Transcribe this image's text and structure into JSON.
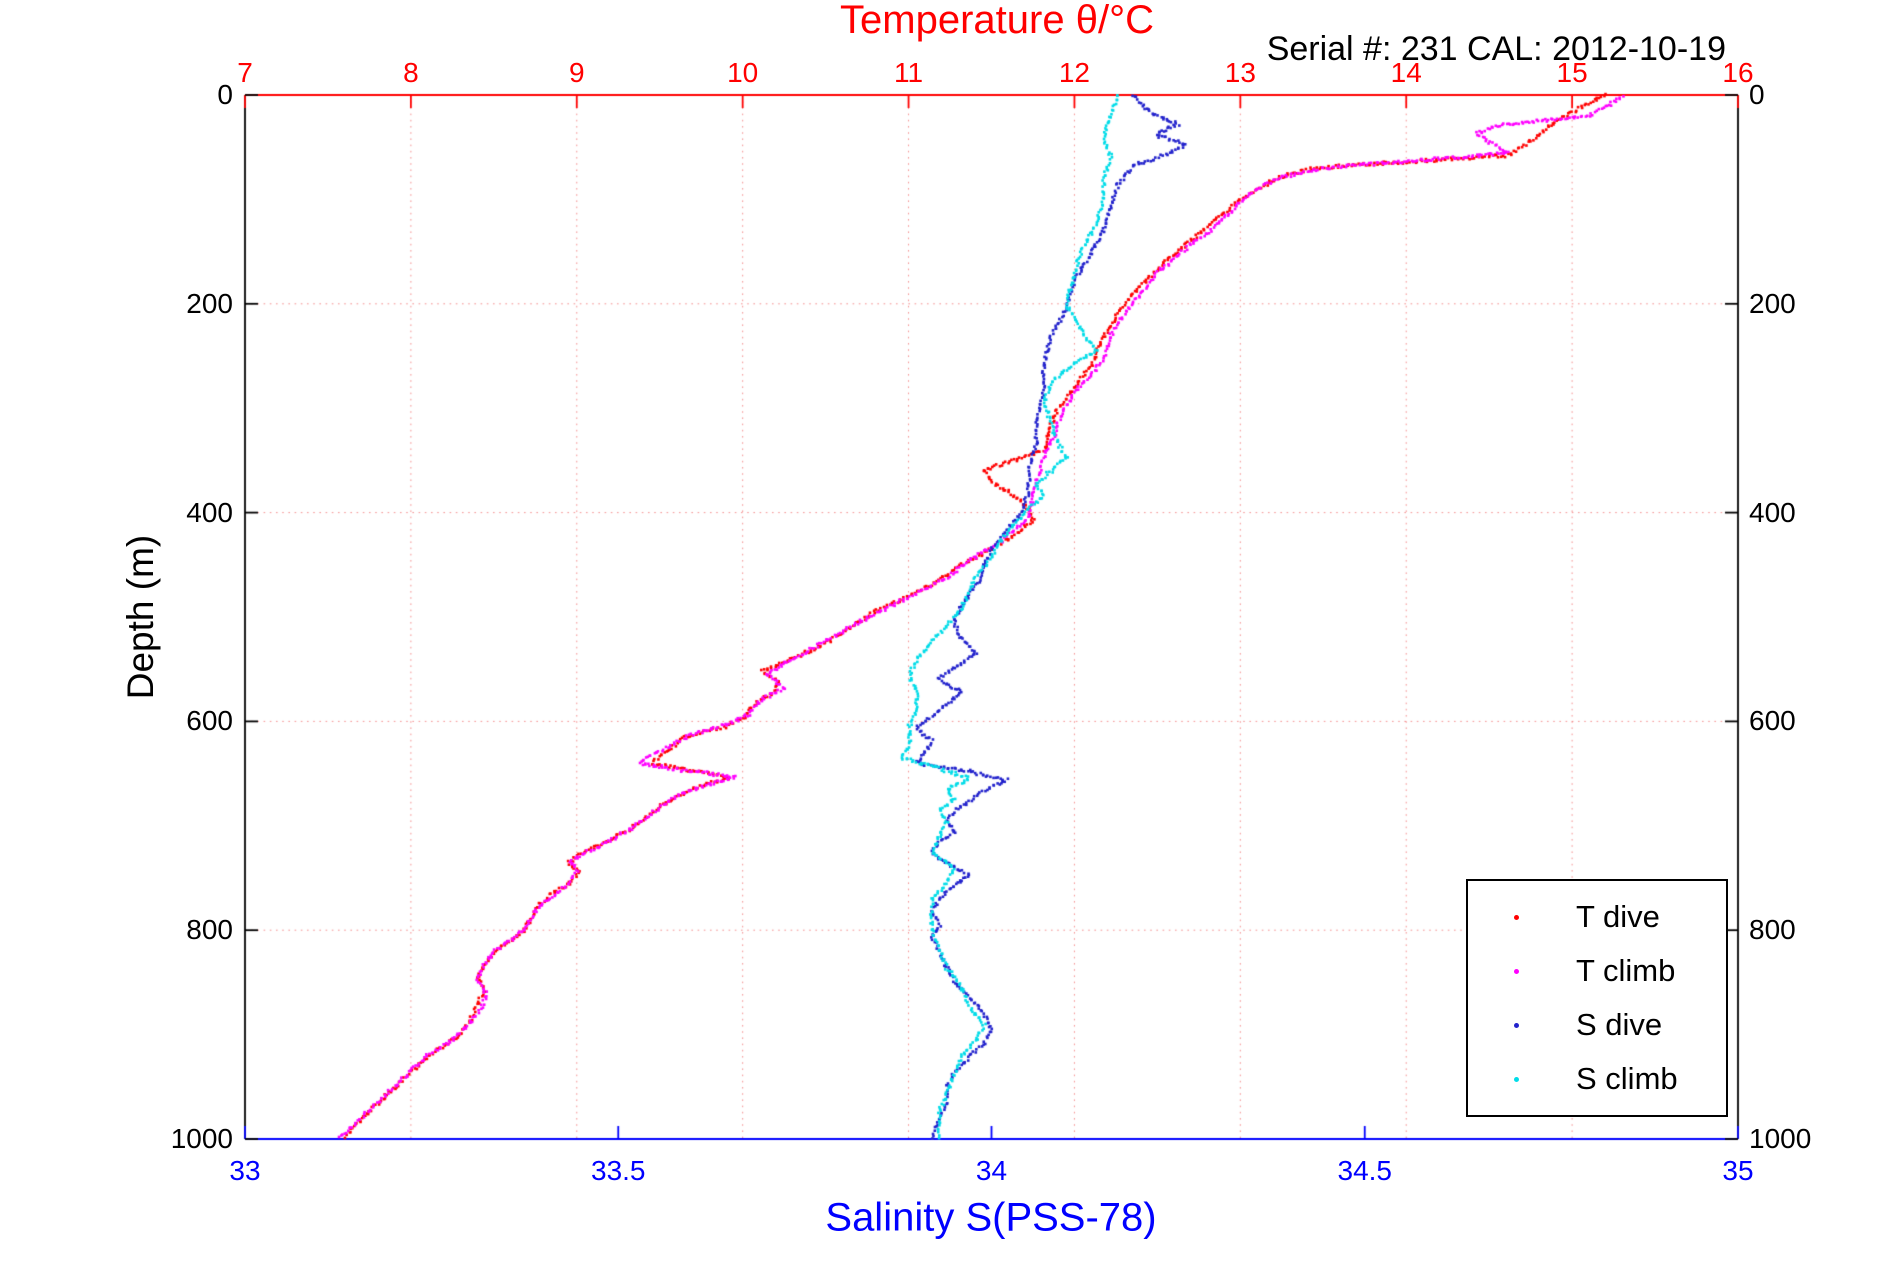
{
  "chart_data": {
    "type": "scatter",
    "title": "Temperature θ/°C",
    "annotation": "Serial #: 231  CAL: 2012-10-19",
    "xlabel": "Salinity S(PSS-78)",
    "ylabel": "Depth (m)",
    "grid": true,
    "grid_color": "#f06a6a",
    "legend_position": "inside lower right",
    "depth_axis": {
      "min": 0,
      "max": 1000,
      "ticks": [
        0,
        200,
        400,
        600,
        800,
        1000
      ],
      "color": "#000000"
    },
    "temp_axis": {
      "min": 7,
      "max": 16,
      "ticks": [
        7,
        8,
        9,
        10,
        11,
        12,
        13,
        14,
        15,
        16
      ],
      "color": "#ff0000"
    },
    "sal_axis": {
      "min": 33,
      "max": 35,
      "ticks": [
        33,
        33.5,
        34,
        34.5,
        35
      ],
      "color": "#0000ff"
    },
    "series": [
      {
        "name": "T dive",
        "axis": "temp",
        "color": "#ff0000",
        "points": [
          [
            0,
            15.2
          ],
          [
            12,
            15.05
          ],
          [
            25,
            14.9
          ],
          [
            38,
            14.8
          ],
          [
            50,
            14.7
          ],
          [
            58,
            14.6
          ],
          [
            62,
            14.2
          ],
          [
            66,
            13.8
          ],
          [
            70,
            13.45
          ],
          [
            78,
            13.25
          ],
          [
            90,
            13.1
          ],
          [
            100,
            13.0
          ],
          [
            120,
            12.85
          ],
          [
            140,
            12.7
          ],
          [
            160,
            12.55
          ],
          [
            180,
            12.42
          ],
          [
            200,
            12.3
          ],
          [
            220,
            12.22
          ],
          [
            240,
            12.15
          ],
          [
            260,
            12.1
          ],
          [
            280,
            12.0
          ],
          [
            300,
            11.9
          ],
          [
            320,
            11.85
          ],
          [
            340,
            11.82
          ],
          [
            352,
            11.6
          ],
          [
            360,
            11.45
          ],
          [
            370,
            11.5
          ],
          [
            382,
            11.62
          ],
          [
            395,
            11.72
          ],
          [
            408,
            11.75
          ],
          [
            420,
            11.65
          ],
          [
            435,
            11.5
          ],
          [
            450,
            11.32
          ],
          [
            465,
            11.18
          ],
          [
            480,
            11.0
          ],
          [
            495,
            10.8
          ],
          [
            510,
            10.65
          ],
          [
            525,
            10.5
          ],
          [
            540,
            10.3
          ],
          [
            552,
            10.12
          ],
          [
            562,
            10.22
          ],
          [
            572,
            10.18
          ],
          [
            582,
            10.08
          ],
          [
            595,
            10.02
          ],
          [
            605,
            9.9
          ],
          [
            615,
            9.65
          ],
          [
            628,
            9.55
          ],
          [
            640,
            9.45
          ],
          [
            648,
            9.72
          ],
          [
            654,
            9.92
          ],
          [
            662,
            9.75
          ],
          [
            672,
            9.6
          ],
          [
            682,
            9.5
          ],
          [
            695,
            9.4
          ],
          [
            705,
            9.3
          ],
          [
            715,
            9.18
          ],
          [
            725,
            9.05
          ],
          [
            735,
            8.95
          ],
          [
            745,
            9.02
          ],
          [
            755,
            8.95
          ],
          [
            765,
            8.85
          ],
          [
            778,
            8.76
          ],
          [
            792,
            8.72
          ],
          [
            805,
            8.65
          ],
          [
            818,
            8.52
          ],
          [
            832,
            8.45
          ],
          [
            845,
            8.4
          ],
          [
            858,
            8.44
          ],
          [
            872,
            8.4
          ],
          [
            886,
            8.36
          ],
          [
            900,
            8.3
          ],
          [
            915,
            8.15
          ],
          [
            930,
            8.04
          ],
          [
            945,
            7.94
          ],
          [
            960,
            7.84
          ],
          [
            975,
            7.74
          ],
          [
            988,
            7.66
          ],
          [
            1000,
            7.6
          ]
        ]
      },
      {
        "name": "T climb",
        "axis": "temp",
        "color": "#ff00ff",
        "points": [
          [
            0,
            15.3
          ],
          [
            10,
            15.22
          ],
          [
            20,
            15.1
          ],
          [
            28,
            14.6
          ],
          [
            36,
            14.42
          ],
          [
            45,
            14.5
          ],
          [
            55,
            14.62
          ],
          [
            60,
            14.3
          ],
          [
            65,
            13.9
          ],
          [
            70,
            13.5
          ],
          [
            80,
            13.22
          ],
          [
            95,
            13.05
          ],
          [
            110,
            12.95
          ],
          [
            130,
            12.82
          ],
          [
            150,
            12.65
          ],
          [
            170,
            12.5
          ],
          [
            190,
            12.4
          ],
          [
            210,
            12.3
          ],
          [
            230,
            12.22
          ],
          [
            250,
            12.18
          ],
          [
            265,
            12.12
          ],
          [
            285,
            12.0
          ],
          [
            305,
            11.92
          ],
          [
            325,
            11.88
          ],
          [
            345,
            11.82
          ],
          [
            365,
            11.78
          ],
          [
            385,
            11.75
          ],
          [
            405,
            11.72
          ],
          [
            425,
            11.58
          ],
          [
            445,
            11.38
          ],
          [
            465,
            11.2
          ],
          [
            485,
            10.95
          ],
          [
            505,
            10.7
          ],
          [
            525,
            10.48
          ],
          [
            542,
            10.28
          ],
          [
            555,
            10.15
          ],
          [
            568,
            10.25
          ],
          [
            580,
            10.1
          ],
          [
            592,
            10.05
          ],
          [
            602,
            9.92
          ],
          [
            612,
            9.7
          ],
          [
            622,
            9.58
          ],
          [
            632,
            9.45
          ],
          [
            640,
            9.38
          ],
          [
            647,
            9.65
          ],
          [
            653,
            9.95
          ],
          [
            660,
            9.8
          ],
          [
            670,
            9.62
          ],
          [
            680,
            9.52
          ],
          [
            692,
            9.42
          ],
          [
            704,
            9.32
          ],
          [
            714,
            9.2
          ],
          [
            724,
            9.08
          ],
          [
            734,
            8.96
          ],
          [
            744,
            9.0
          ],
          [
            756,
            8.94
          ],
          [
            768,
            8.85
          ],
          [
            780,
            8.76
          ],
          [
            795,
            8.7
          ],
          [
            808,
            8.62
          ],
          [
            820,
            8.5
          ],
          [
            834,
            8.44
          ],
          [
            848,
            8.4
          ],
          [
            862,
            8.46
          ],
          [
            876,
            8.42
          ],
          [
            890,
            8.35
          ],
          [
            905,
            8.25
          ],
          [
            920,
            8.1
          ],
          [
            935,
            8.0
          ],
          [
            950,
            7.9
          ],
          [
            965,
            7.8
          ],
          [
            980,
            7.7
          ],
          [
            992,
            7.62
          ],
          [
            1000,
            7.56
          ]
        ]
      },
      {
        "name": "S dive",
        "axis": "sal",
        "color": "#2222cc",
        "points": [
          [
            0,
            34.19
          ],
          [
            15,
            34.21
          ],
          [
            28,
            34.25
          ],
          [
            38,
            34.22
          ],
          [
            48,
            34.26
          ],
          [
            58,
            34.23
          ],
          [
            68,
            34.19
          ],
          [
            85,
            34.17
          ],
          [
            105,
            34.16
          ],
          [
            130,
            34.15
          ],
          [
            155,
            34.13
          ],
          [
            180,
            34.11
          ],
          [
            205,
            34.1
          ],
          [
            230,
            34.08
          ],
          [
            258,
            34.07
          ],
          [
            285,
            34.07
          ],
          [
            310,
            34.06
          ],
          [
            335,
            34.06
          ],
          [
            358,
            34.05
          ],
          [
            380,
            34.05
          ],
          [
            400,
            34.04
          ],
          [
            418,
            34.02
          ],
          [
            435,
            34.0
          ],
          [
            452,
            33.99
          ],
          [
            470,
            33.98
          ],
          [
            488,
            33.96
          ],
          [
            505,
            33.95
          ],
          [
            522,
            33.96
          ],
          [
            535,
            33.98
          ],
          [
            548,
            33.95
          ],
          [
            560,
            33.93
          ],
          [
            572,
            33.96
          ],
          [
            583,
            33.94
          ],
          [
            595,
            33.92
          ],
          [
            607,
            33.9
          ],
          [
            618,
            33.92
          ],
          [
            630,
            33.91
          ],
          [
            640,
            33.9
          ],
          [
            648,
            33.97
          ],
          [
            656,
            34.02
          ],
          [
            666,
            33.99
          ],
          [
            676,
            33.97
          ],
          [
            686,
            33.95
          ],
          [
            696,
            33.94
          ],
          [
            706,
            33.95
          ],
          [
            716,
            33.93
          ],
          [
            726,
            33.92
          ],
          [
            736,
            33.94
          ],
          [
            746,
            33.97
          ],
          [
            758,
            33.95
          ],
          [
            770,
            33.93
          ],
          [
            782,
            33.92
          ],
          [
            795,
            33.93
          ],
          [
            808,
            33.92
          ],
          [
            820,
            33.93
          ],
          [
            835,
            33.94
          ],
          [
            850,
            33.95
          ],
          [
            865,
            33.97
          ],
          [
            880,
            33.99
          ],
          [
            895,
            34.0
          ],
          [
            908,
            33.99
          ],
          [
            922,
            33.97
          ],
          [
            936,
            33.95
          ],
          [
            950,
            33.94
          ],
          [
            965,
            33.94
          ],
          [
            980,
            33.93
          ],
          [
            1000,
            33.92
          ]
        ]
      },
      {
        "name": "S climb",
        "axis": "sal",
        "color": "#00dce8",
        "points": [
          [
            0,
            34.17
          ],
          [
            20,
            34.16
          ],
          [
            40,
            34.15
          ],
          [
            60,
            34.16
          ],
          [
            80,
            34.15
          ],
          [
            100,
            34.15
          ],
          [
            125,
            34.14
          ],
          [
            150,
            34.12
          ],
          [
            175,
            34.11
          ],
          [
            200,
            34.1
          ],
          [
            225,
            34.12
          ],
          [
            245,
            34.14
          ],
          [
            258,
            34.11
          ],
          [
            275,
            34.08
          ],
          [
            295,
            34.07
          ],
          [
            315,
            34.08
          ],
          [
            335,
            34.09
          ],
          [
            348,
            34.1
          ],
          [
            360,
            34.08
          ],
          [
            372,
            34.06
          ],
          [
            384,
            34.07
          ],
          [
            396,
            34.05
          ],
          [
            412,
            34.03
          ],
          [
            428,
            34.01
          ],
          [
            444,
            34.0
          ],
          [
            460,
            33.98
          ],
          [
            476,
            33.97
          ],
          [
            492,
            33.96
          ],
          [
            508,
            33.94
          ],
          [
            524,
            33.92
          ],
          [
            540,
            33.9
          ],
          [
            556,
            33.89
          ],
          [
            572,
            33.9
          ],
          [
            588,
            33.9
          ],
          [
            604,
            33.89
          ],
          [
            620,
            33.89
          ],
          [
            635,
            33.88
          ],
          [
            645,
            33.93
          ],
          [
            655,
            33.97
          ],
          [
            665,
            33.94
          ],
          [
            675,
            33.95
          ],
          [
            685,
            33.93
          ],
          [
            697,
            33.94
          ],
          [
            710,
            33.93
          ],
          [
            725,
            33.92
          ],
          [
            740,
            33.95
          ],
          [
            755,
            33.94
          ],
          [
            770,
            33.92
          ],
          [
            785,
            33.92
          ],
          [
            800,
            33.92
          ],
          [
            818,
            33.93
          ],
          [
            836,
            33.94
          ],
          [
            854,
            33.96
          ],
          [
            872,
            33.97
          ],
          [
            890,
            33.99
          ],
          [
            905,
            33.98
          ],
          [
            920,
            33.96
          ],
          [
            938,
            33.95
          ],
          [
            956,
            33.94
          ],
          [
            974,
            33.93
          ],
          [
            1000,
            33.93
          ]
        ]
      }
    ]
  }
}
